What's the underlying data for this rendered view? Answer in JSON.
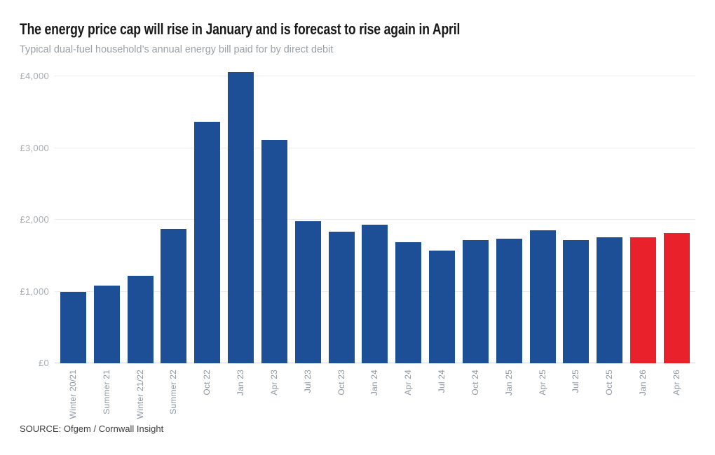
{
  "header": {
    "title": "The energy price cap will rise in January and is forecast to rise again in April",
    "subtitle": "Typical dual-fuel household’s annual energy bill paid for by direct debit"
  },
  "footer": {
    "source": "SOURCE: Ofgem / Cornwall Insight"
  },
  "chart_data": {
    "type": "bar",
    "title": "The energy price cap will rise in January and is forecast to rise again in April",
    "subtitle": "Typical dual-fuel household’s annual energy bill paid for by direct debit",
    "source": "SOURCE: Ofgem / Cornwall Insight",
    "categories": [
      "Winter 20/21",
      "Summer 21",
      "Winter 21/22",
      "Summer 22",
      "Oct 22",
      "Jan 23",
      "Apr 23",
      "Jul 23",
      "Oct 23",
      "Jan 24",
      "Apr 24",
      "Jul 24",
      "Oct 24",
      "Jan 25",
      "Apr 25",
      "Jul 25",
      "Oct 25",
      "Jan 26",
      "Apr 26"
    ],
    "values": [
      1000,
      1084,
      1216,
      1871,
      3370,
      4059,
      3116,
      1976,
      1834,
      1928,
      1690,
      1568,
      1717,
      1738,
      1849,
      1720,
      1755,
      1758,
      1810
    ],
    "unit": "£",
    "forecast_from_index": 17,
    "forecast_categories": [
      "Jan 26",
      "Apr 26"
    ],
    "bar_color": "#1d4f96",
    "forecast_color": "#e8212b",
    "grid": true,
    "legend_position": "none",
    "xlabel": "",
    "ylabel": "",
    "ylim": [
      0,
      4100
    ],
    "yticks": [
      {
        "value": 0,
        "label": "£0"
      },
      {
        "value": 1000,
        "label": "£1,000"
      },
      {
        "value": 2000,
        "label": "£2,000"
      },
      {
        "value": 3000,
        "label": "£3,000"
      },
      {
        "value": 4000,
        "label": "£4,000"
      }
    ]
  }
}
